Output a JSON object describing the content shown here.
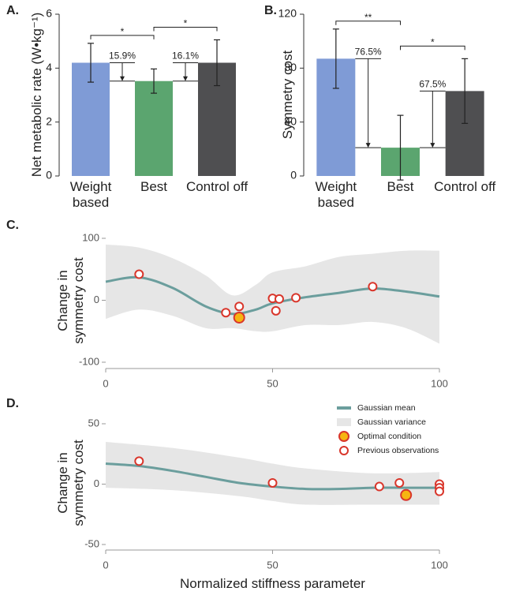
{
  "chart_data": [
    {
      "type": "bar",
      "panel": "A.",
      "ylabel": "Net metabolic rate (W•kg⁻¹)",
      "categories": [
        "Weight based",
        "Best",
        "Control off"
      ],
      "values": [
        4.2,
        3.52,
        4.2
      ],
      "errors": [
        0.72,
        0.45,
        0.85
      ],
      "colors": [
        "#7f9bd6",
        "#5ba56f",
        "#4f4f51"
      ],
      "ylim": [
        0,
        6
      ],
      "yticks": [
        0,
        2,
        4,
        6
      ],
      "annotations": [
        "15.9%",
        "16.1%"
      ],
      "significance": [
        "*",
        "*"
      ]
    },
    {
      "type": "bar",
      "panel": "B.",
      "ylabel": "Symmetry cost",
      "categories": [
        "Weight based",
        "Best",
        "Control off"
      ],
      "values": [
        87,
        21,
        63
      ],
      "errors": [
        22,
        24,
        24
      ],
      "colors": [
        "#7f9bd6",
        "#5ba56f",
        "#4f4f51"
      ],
      "ylim": [
        0,
        120
      ],
      "yticks": [
        0,
        40,
        80,
        120
      ],
      "annotations": [
        "76.5%",
        "67.5%"
      ],
      "significance": [
        "**",
        "*"
      ]
    },
    {
      "type": "line",
      "panel": "C.",
      "ylabel": "Change in symmetry cost",
      "xlim": [
        0,
        100
      ],
      "xticks": [
        0,
        50,
        100
      ],
      "ylim": [
        -100,
        100
      ],
      "yticks": [
        -100,
        0,
        100
      ],
      "series": [
        {
          "kind": "line",
          "color": "#6b9e9d",
          "x": [
            0,
            10,
            20,
            30,
            38,
            45,
            50,
            60,
            70,
            80,
            90,
            100
          ],
          "values": [
            30,
            37,
            20,
            -10,
            -22,
            -15,
            -5,
            5,
            12,
            19,
            14,
            6
          ]
        },
        {
          "kind": "band",
          "color": "#e6e6e6",
          "x": [
            0,
            10,
            20,
            30,
            38,
            45,
            50,
            60,
            70,
            80,
            90,
            100
          ],
          "upper": [
            90,
            85,
            68,
            40,
            8,
            25,
            45,
            55,
            70,
            75,
            80,
            80
          ],
          "lower": [
            -30,
            -15,
            -25,
            -45,
            -45,
            -50,
            -50,
            -40,
            -40,
            -35,
            -45,
            -70
          ]
        },
        {
          "kind": "scatter",
          "color": "#f6b511",
          "edgecolor": "#d9362b",
          "x": [
            40
          ],
          "values": [
            -28
          ]
        },
        {
          "kind": "scatter",
          "color": "#ffffff",
          "edgecolor": "#d9362b",
          "x": [
            10,
            36,
            40,
            50,
            51,
            52,
            57,
            80
          ],
          "values": [
            42,
            -20,
            -10,
            3,
            -17,
            2,
            4,
            22
          ]
        }
      ]
    },
    {
      "type": "line",
      "panel": "D.",
      "ylabel": "Change in symmetry cost",
      "xlabel": "Normalized stiffness parameter",
      "xlim": [
        0,
        100
      ],
      "xticks": [
        0,
        50,
        100
      ],
      "ylim": [
        -50,
        50
      ],
      "yticks": [
        -50,
        0,
        50
      ],
      "legend": "upper right",
      "series": [
        {
          "name": "Gaussian mean",
          "kind": "line",
          "color": "#6b9e9d",
          "x": [
            0,
            10,
            20,
            30,
            40,
            50,
            60,
            70,
            80,
            90,
            100
          ],
          "values": [
            17,
            15,
            11,
            6,
            1,
            -2,
            -4,
            -4,
            -3,
            -3,
            -3
          ]
        },
        {
          "name": "Gaussian variance",
          "kind": "band",
          "color": "#e6e6e6",
          "x": [
            0,
            20,
            40,
            50,
            60,
            80,
            100
          ],
          "upper": [
            35,
            30,
            22,
            17,
            13,
            9,
            10
          ],
          "lower": [
            -3,
            -5,
            -10,
            -14,
            -17,
            -17,
            -17
          ]
        },
        {
          "name": "Optimal condition",
          "kind": "scatter",
          "color": "#f6b511",
          "edgecolor": "#d9362b",
          "x": [
            90
          ],
          "values": [
            -9
          ]
        },
        {
          "name": "Previous observations",
          "kind": "scatter",
          "color": "#ffffff",
          "edgecolor": "#d9362b",
          "x": [
            10,
            50,
            82,
            88,
            100,
            100,
            100
          ],
          "values": [
            19,
            1,
            -2,
            1,
            0,
            -3,
            -6
          ]
        }
      ]
    }
  ]
}
